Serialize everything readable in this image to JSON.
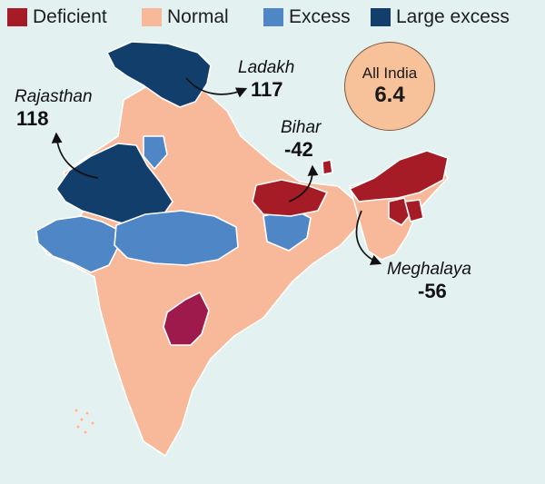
{
  "legend": [
    {
      "label": "Deficient",
      "color": "#a61c26"
    },
    {
      "label": "Normal",
      "color": "#f7b99a"
    },
    {
      "label": "Excess",
      "color": "#4f86c6"
    },
    {
      "label": "Large excess",
      "color": "#123e6c"
    }
  ],
  "all_india": {
    "label": "All India",
    "value": "6.4"
  },
  "callouts": {
    "ladakh": {
      "name": "Ladakh",
      "value": "117"
    },
    "rajasthan": {
      "name": "Rajasthan",
      "value": "118"
    },
    "bihar": {
      "name": "Bihar",
      "value": "-42"
    },
    "meghalaya": {
      "name": "Meghalaya",
      "value": "-56"
    }
  },
  "colors": {
    "deficient": "#a61c26",
    "telangana": "#9e1a4c",
    "normal": "#f7b99a",
    "excess": "#4f86c6",
    "large_excess": "#123e6c",
    "background": "#e3f1f1",
    "border": "#ffffff"
  }
}
